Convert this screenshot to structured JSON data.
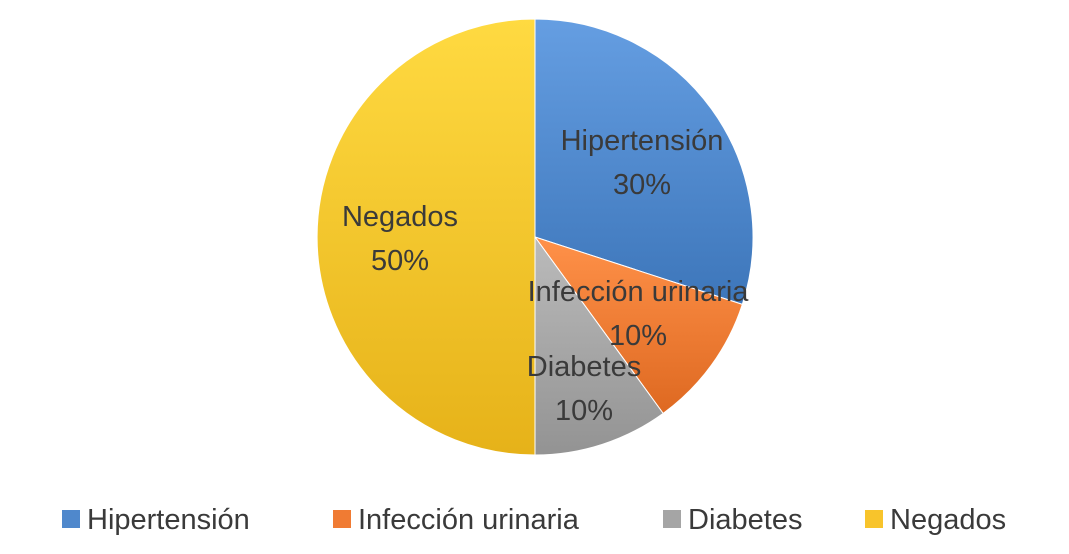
{
  "chart_data": {
    "type": "pie",
    "title": "",
    "categories": [
      "Hipertensión",
      "Infección urinaria",
      "Diabetes",
      "Negados"
    ],
    "values": [
      30,
      10,
      10,
      50
    ],
    "data_labels": [
      "30%",
      "10%",
      "10%",
      "50%"
    ],
    "colors": [
      "#4F88CC",
      "#F07B33",
      "#A5A5A5",
      "#F8C42B"
    ],
    "legend": {
      "placement": "bottom",
      "entries": [
        "Hipertensión",
        "Infección urinaria",
        "Diabetes",
        "Negados"
      ]
    }
  }
}
